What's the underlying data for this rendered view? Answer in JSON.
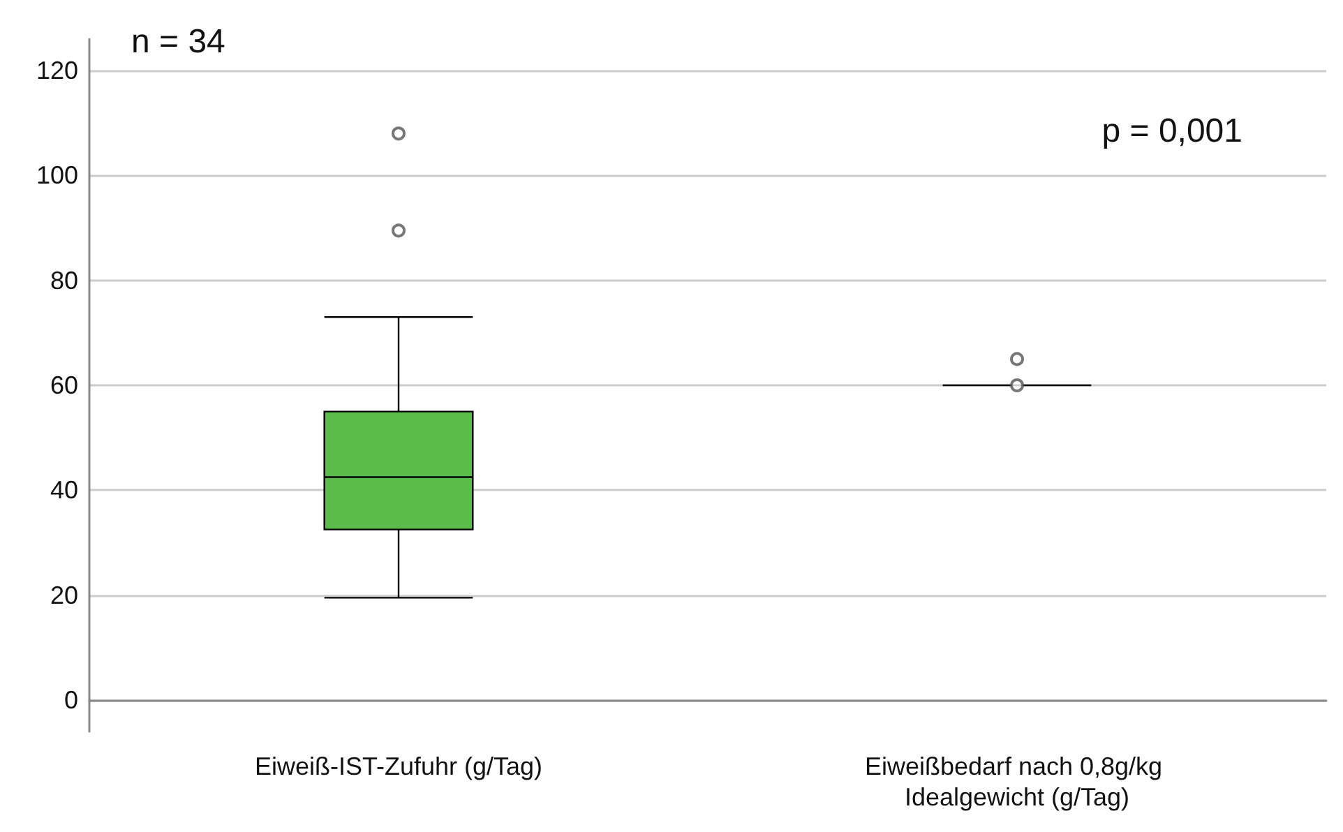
{
  "chart_data": {
    "type": "box",
    "categories": [
      "Eiweiß-IST-Zufuhr (g/Tag)",
      "Eiweißbedarf nach 0,8g/kg Idealgewicht (g/Tag)"
    ],
    "boxes": [
      {
        "low": 19.5,
        "q1": 32.5,
        "median": 42.5,
        "q3": 55,
        "high": 73,
        "outliers": [
          89.5,
          108
        ]
      },
      {
        "low": 60,
        "q1": 60,
        "median": 60,
        "q3": 60,
        "high": 60,
        "outliers": [
          60,
          65
        ]
      }
    ],
    "colors": [
      "#5bbb4b",
      "#000000"
    ],
    "ylim": [
      -6,
      126
    ],
    "yticks": [
      0,
      20,
      40,
      60,
      80,
      100,
      120
    ],
    "grid": "y",
    "marker": "circle",
    "annotations": [
      "n = 34",
      "p = 0,001"
    ]
  }
}
